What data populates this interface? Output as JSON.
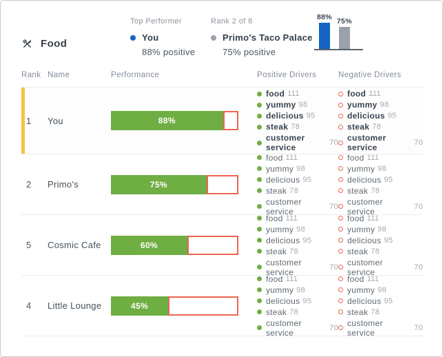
{
  "card": {
    "category": "Food"
  },
  "header": {
    "top_performer": {
      "label": "Top Performer",
      "name": "You",
      "detail": "88% positive"
    },
    "rank_summary": {
      "label": "Rank 2 of 8",
      "name": "Primo's Taco Palace",
      "detail": "75% positive"
    }
  },
  "chart_data": {
    "type": "bar",
    "categories": [
      "You",
      "Primo's Taco Palace"
    ],
    "values": [
      88,
      75
    ],
    "labels": [
      "88%",
      "75%"
    ],
    "colors": [
      "#1464c0",
      "#9aa1ab"
    ],
    "title": "",
    "xlabel": "",
    "ylabel": "",
    "ylim": [
      0,
      100
    ]
  },
  "table": {
    "columns": [
      "Rank",
      "Name",
      "Performance",
      "Positive Drivers",
      "Negative Drivers"
    ],
    "rows": [
      {
        "rank": "1",
        "name": "You",
        "performance": 88,
        "performance_label": "88%",
        "highlighted": true,
        "positive_drivers": [
          {
            "label": "food",
            "count": "111"
          },
          {
            "label": "yummy",
            "count": "98"
          },
          {
            "label": "delicious",
            "count": "95"
          },
          {
            "label": "steak",
            "count": "78"
          },
          {
            "label": "customer service",
            "count": "70"
          }
        ],
        "negative_drivers": [
          {
            "label": "food",
            "count": "111"
          },
          {
            "label": "yummy",
            "count": "98"
          },
          {
            "label": "delicious",
            "count": "95"
          },
          {
            "label": "steak",
            "count": "78"
          },
          {
            "label": "customer service",
            "count": "70"
          }
        ]
      },
      {
        "rank": "2",
        "name": "Primo's",
        "performance": 75,
        "performance_label": "75%",
        "highlighted": false,
        "positive_drivers": [
          {
            "label": "food",
            "count": "111"
          },
          {
            "label": "yummy",
            "count": "98"
          },
          {
            "label": "delicious",
            "count": "95"
          },
          {
            "label": "steak",
            "count": "78"
          },
          {
            "label": "customer service",
            "count": "70"
          }
        ],
        "negative_drivers": [
          {
            "label": "food",
            "count": "111"
          },
          {
            "label": "yummy",
            "count": "98"
          },
          {
            "label": "delicious",
            "count": "95"
          },
          {
            "label": "steak",
            "count": "78"
          },
          {
            "label": "customer service",
            "count": "70"
          }
        ]
      },
      {
        "rank": "5",
        "name": "Cosmic Cafe",
        "performance": 60,
        "performance_label": "60%",
        "highlighted": false,
        "positive_drivers": [
          {
            "label": "food",
            "count": "111"
          },
          {
            "label": "yummy",
            "count": "98"
          },
          {
            "label": "delicious",
            "count": "95"
          },
          {
            "label": "steak",
            "count": "78"
          },
          {
            "label": "customer service",
            "count": "70"
          }
        ],
        "negative_drivers": [
          {
            "label": "food",
            "count": "111"
          },
          {
            "label": "yummy",
            "count": "98"
          },
          {
            "label": "delicious",
            "count": "95"
          },
          {
            "label": "steak",
            "count": "78"
          },
          {
            "label": "customer service",
            "count": "70"
          }
        ]
      },
      {
        "rank": "4",
        "name": "Little Lounge",
        "performance": 45,
        "performance_label": "45%",
        "highlighted": false,
        "positive_drivers": [
          {
            "label": "food",
            "count": "111"
          },
          {
            "label": "yummy",
            "count": "98"
          },
          {
            "label": "delicious",
            "count": "95"
          },
          {
            "label": "steak",
            "count": "78"
          },
          {
            "label": "customer service",
            "count": "70"
          }
        ],
        "negative_drivers": [
          {
            "label": "food",
            "count": "111"
          },
          {
            "label": "yummy",
            "count": "98"
          },
          {
            "label": "delicious",
            "count": "95"
          },
          {
            "label": "steak",
            "count": "78"
          },
          {
            "label": "customer service",
            "count": "70"
          }
        ]
      }
    ]
  },
  "colors": {
    "positive_green": "#6fae43",
    "negative_red": "#ee6352",
    "highlight_yellow": "#f5c242",
    "primary_blue": "#1464c0",
    "comparison_gray": "#9aa1ab"
  }
}
